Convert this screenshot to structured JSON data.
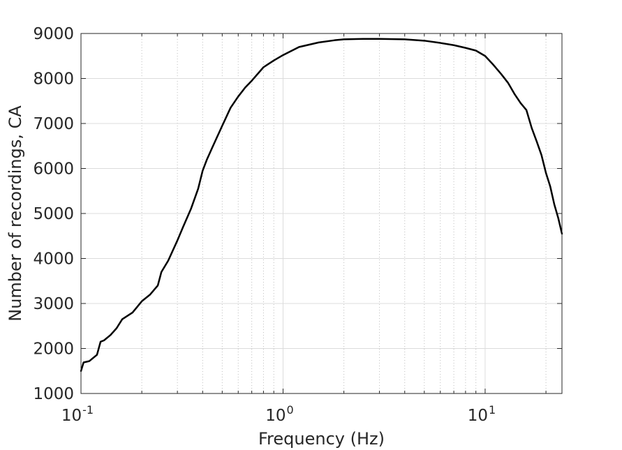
{
  "chart_data": {
    "type": "line",
    "title": "",
    "xlabel": "Frequency (Hz)",
    "ylabel": "Number of recordings, CA",
    "xscale": "log",
    "xlim": [
      0.1,
      24
    ],
    "ylim": [
      1000,
      9000
    ],
    "grid": true,
    "x_ticks": [
      {
        "value": 0.1,
        "base": "10",
        "exp": "-1"
      },
      {
        "value": 1,
        "base": "10",
        "exp": "0"
      },
      {
        "value": 10,
        "base": "10",
        "exp": "1"
      }
    ],
    "y_ticks": [
      {
        "value": 1000,
        "label": "1000"
      },
      {
        "value": 2000,
        "label": "2000"
      },
      {
        "value": 3000,
        "label": "3000"
      },
      {
        "value": 4000,
        "label": "4000"
      },
      {
        "value": 5000,
        "label": "5000"
      },
      {
        "value": 6000,
        "label": "6000"
      },
      {
        "value": 7000,
        "label": "7000"
      },
      {
        "value": 8000,
        "label": "8000"
      },
      {
        "value": 9000,
        "label": "9000"
      }
    ],
    "series": [
      {
        "color": "#000000",
        "x": [
          0.1,
          0.103,
          0.11,
          0.12,
          0.125,
          0.13,
          0.14,
          0.15,
          0.16,
          0.18,
          0.2,
          0.22,
          0.24,
          0.25,
          0.27,
          0.3,
          0.32,
          0.35,
          0.38,
          0.4,
          0.42,
          0.45,
          0.5,
          0.55,
          0.6,
          0.65,
          0.7,
          0.8,
          0.9,
          1.0,
          1.2,
          1.5,
          1.8,
          2.0,
          2.5,
          3.0,
          4.0,
          5.0,
          6.0,
          7.0,
          8.0,
          9.0,
          10.0,
          11.0,
          12.0,
          13.0,
          14.0,
          15.0,
          16.0,
          17.0,
          18.0,
          19.0,
          20.0,
          21.0,
          22.0,
          23.0,
          24.0
        ],
        "values": [
          1500,
          1690,
          1720,
          1860,
          2150,
          2180,
          2300,
          2450,
          2650,
          2800,
          3050,
          3200,
          3400,
          3700,
          3950,
          4400,
          4700,
          5100,
          5550,
          5950,
          6200,
          6500,
          6950,
          7350,
          7600,
          7800,
          7950,
          8250,
          8400,
          8520,
          8700,
          8800,
          8850,
          8870,
          8880,
          8880,
          8870,
          8840,
          8790,
          8740,
          8680,
          8620,
          8500,
          8300,
          8100,
          7900,
          7650,
          7450,
          7300,
          6900,
          6600,
          6300,
          5900,
          5600,
          5200,
          4900,
          4550
        ]
      }
    ]
  }
}
